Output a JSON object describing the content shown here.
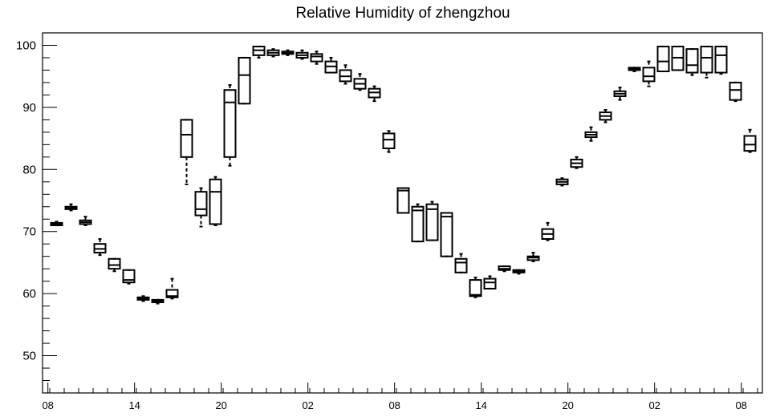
{
  "chart_data": {
    "type": "box",
    "title": "Relative Humidity of zhengzhou",
    "xlabel": "",
    "ylabel": "",
    "ylim": [
      44,
      102
    ],
    "yticks": [
      50,
      60,
      70,
      80,
      90,
      100
    ],
    "xlim": [
      0,
      49
    ],
    "xticks": [
      {
        "pos": 0.4,
        "label": "08"
      },
      {
        "pos": 6.4,
        "label": "14"
      },
      {
        "pos": 12.4,
        "label": "20"
      },
      {
        "pos": 18.4,
        "label": "02"
      },
      {
        "pos": 24.4,
        "label": "08"
      },
      {
        "pos": 30.4,
        "label": "14"
      },
      {
        "pos": 36.4,
        "label": "20"
      },
      {
        "pos": 42.4,
        "label": "02"
      },
      {
        "pos": 48.4,
        "label": "08"
      }
    ],
    "grid": false,
    "boxes": [
      {
        "x": 1,
        "min": 71.0,
        "q1": 71.0,
        "median": 71.2,
        "q3": 71.4,
        "max": 71.6
      },
      {
        "x": 2,
        "min": 73.4,
        "q1": 73.6,
        "median": 73.8,
        "q3": 74.0,
        "max": 74.4
      },
      {
        "x": 3,
        "min": 71.0,
        "q1": 71.2,
        "median": 71.5,
        "q3": 71.8,
        "max": 72.4
      },
      {
        "x": 4,
        "min": 66.2,
        "q1": 66.6,
        "median": 67.2,
        "q3": 68.0,
        "max": 68.8
      },
      {
        "x": 5,
        "min": 63.6,
        "q1": 64.0,
        "median": 64.6,
        "q3": 65.6,
        "max": 65.6
      },
      {
        "x": 6,
        "min": 61.6,
        "q1": 61.8,
        "median": 62.2,
        "q3": 63.8,
        "max": 63.8
      },
      {
        "x": 7,
        "min": 58.8,
        "q1": 59.0,
        "median": 59.2,
        "q3": 59.4,
        "max": 59.6
      },
      {
        "x": 8,
        "min": 58.4,
        "q1": 58.6,
        "median": 58.8,
        "q3": 59.0,
        "max": 59.0
      },
      {
        "x": 9,
        "min": 59.2,
        "q1": 59.4,
        "median": 59.6,
        "q3": 60.6,
        "max": 62.4
      },
      {
        "x": 10,
        "min": 77.6,
        "q1": 82.0,
        "median": 85.6,
        "q3": 88.0,
        "max": 88.0
      },
      {
        "x": 11,
        "min": 70.8,
        "q1": 72.6,
        "median": 73.6,
        "q3": 76.4,
        "max": 77.0
      },
      {
        "x": 12,
        "min": 71.0,
        "q1": 71.2,
        "median": 76.4,
        "q3": 78.4,
        "max": 78.8
      },
      {
        "x": 13,
        "min": 80.6,
        "q1": 82.0,
        "median": 90.8,
        "q3": 92.8,
        "max": 93.6
      },
      {
        "x": 14,
        "min": 90.6,
        "q1": 90.6,
        "median": 95.2,
        "q3": 98.0,
        "max": 98.0
      },
      {
        "x": 15,
        "min": 98.0,
        "q1": 98.4,
        "median": 99.2,
        "q3": 99.8,
        "max": 99.8
      },
      {
        "x": 16,
        "min": 98.2,
        "q1": 98.4,
        "median": 98.8,
        "q3": 99.2,
        "max": 99.4
      },
      {
        "x": 17,
        "min": 98.4,
        "q1": 98.6,
        "median": 98.8,
        "q3": 99.0,
        "max": 99.2
      },
      {
        "x": 18,
        "min": 97.8,
        "q1": 98.0,
        "median": 98.4,
        "q3": 98.8,
        "max": 99.2
      },
      {
        "x": 19,
        "min": 97.0,
        "q1": 97.4,
        "median": 98.2,
        "q3": 98.6,
        "max": 99.0
      },
      {
        "x": 20,
        "min": 95.6,
        "q1": 95.6,
        "median": 96.6,
        "q3": 97.4,
        "max": 98.0
      },
      {
        "x": 21,
        "min": 93.8,
        "q1": 94.2,
        "median": 95.0,
        "q3": 96.0,
        "max": 96.8
      },
      {
        "x": 22,
        "min": 92.8,
        "q1": 93.0,
        "median": 93.8,
        "q3": 94.6,
        "max": 95.4
      },
      {
        "x": 23,
        "min": 91.0,
        "q1": 91.6,
        "median": 92.4,
        "q3": 93.0,
        "max": 93.4
      },
      {
        "x": 24,
        "min": 82.8,
        "q1": 83.4,
        "median": 84.8,
        "q3": 85.8,
        "max": 86.2
      },
      {
        "x": 25,
        "min": 73.0,
        "q1": 73.0,
        "median": 76.6,
        "q3": 77.0,
        "max": 77.0
      },
      {
        "x": 26,
        "min": 68.4,
        "q1": 68.4,
        "median": 73.4,
        "q3": 74.0,
        "max": 74.4
      },
      {
        "x": 27,
        "min": 68.6,
        "q1": 68.6,
        "median": 73.6,
        "q3": 74.4,
        "max": 74.8
      },
      {
        "x": 28,
        "min": 66.0,
        "q1": 66.0,
        "median": 72.4,
        "q3": 73.0,
        "max": 73.0
      },
      {
        "x": 29,
        "min": 63.4,
        "q1": 63.4,
        "median": 65.0,
        "q3": 65.6,
        "max": 66.4
      },
      {
        "x": 30,
        "min": 59.4,
        "q1": 59.6,
        "median": 59.8,
        "q3": 62.2,
        "max": 62.6
      },
      {
        "x": 31,
        "min": 60.8,
        "q1": 60.8,
        "median": 61.8,
        "q3": 62.4,
        "max": 62.8
      },
      {
        "x": 32,
        "min": 63.6,
        "q1": 63.8,
        "median": 64.0,
        "q3": 64.4,
        "max": 64.4
      },
      {
        "x": 33,
        "min": 63.2,
        "q1": 63.4,
        "median": 63.6,
        "q3": 63.8,
        "max": 63.8
      },
      {
        "x": 34,
        "min": 65.2,
        "q1": 65.4,
        "median": 65.8,
        "q3": 66.0,
        "max": 66.6
      },
      {
        "x": 35,
        "min": 68.6,
        "q1": 68.8,
        "median": 69.6,
        "q3": 70.4,
        "max": 71.4
      },
      {
        "x": 36,
        "min": 77.4,
        "q1": 77.6,
        "median": 78.0,
        "q3": 78.4,
        "max": 78.6
      },
      {
        "x": 37,
        "min": 80.2,
        "q1": 80.4,
        "median": 81.0,
        "q3": 81.6,
        "max": 82.0
      },
      {
        "x": 38,
        "min": 84.6,
        "q1": 85.2,
        "median": 85.6,
        "q3": 86.0,
        "max": 86.8
      },
      {
        "x": 39,
        "min": 87.6,
        "q1": 88.0,
        "median": 88.6,
        "q3": 89.2,
        "max": 89.6
      },
      {
        "x": 40,
        "min": 91.2,
        "q1": 91.8,
        "median": 92.2,
        "q3": 92.6,
        "max": 93.2
      },
      {
        "x": 41,
        "min": 95.8,
        "q1": 96.0,
        "median": 96.2,
        "q3": 96.4,
        "max": 96.4
      },
      {
        "x": 42,
        "min": 93.4,
        "q1": 94.2,
        "median": 95.0,
        "q3": 96.4,
        "max": 97.4
      },
      {
        "x": 43,
        "min": 95.8,
        "q1": 95.8,
        "median": 97.4,
        "q3": 99.8,
        "max": 99.8
      },
      {
        "x": 44,
        "min": 96.0,
        "q1": 96.0,
        "median": 98.0,
        "q3": 99.8,
        "max": 99.8
      },
      {
        "x": 45,
        "min": 95.2,
        "q1": 95.6,
        "median": 96.8,
        "q3": 99.4,
        "max": 99.4
      },
      {
        "x": 46,
        "min": 94.8,
        "q1": 95.6,
        "median": 98.0,
        "q3": 99.8,
        "max": 99.8
      },
      {
        "x": 47,
        "min": 95.4,
        "q1": 95.6,
        "median": 98.4,
        "q3": 99.8,
        "max": 99.8
      },
      {
        "x": 48,
        "min": 91.0,
        "q1": 91.2,
        "median": 92.8,
        "q3": 94.0,
        "max": 94.0
      },
      {
        "x": 49,
        "min": 82.8,
        "q1": 83.0,
        "median": 84.0,
        "q3": 85.4,
        "max": 86.4
      }
    ],
    "colors": {
      "stroke": "#000000",
      "background": "#ffffff"
    }
  }
}
